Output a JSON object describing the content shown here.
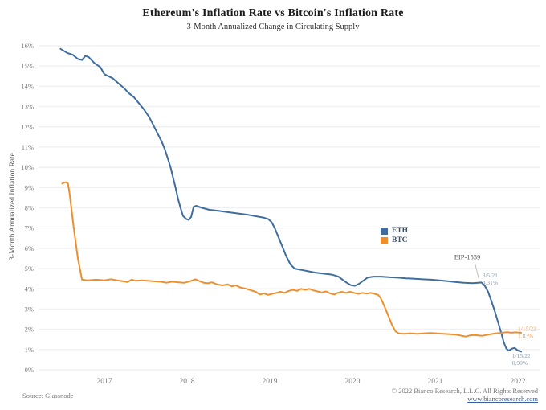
{
  "header": {
    "title": "Ethereum's Inflation Rate vs Bitcoin's Inflation Rate",
    "subtitle": "3-Month Annualized Change in Circulating Supply"
  },
  "footer": {
    "source": "Source: Glassnode",
    "copyright": "© 2022 Bianco Research, L.L.C. All Rights Reserved",
    "url": "www.biancoresearch.com"
  },
  "chart_data": {
    "type": "line",
    "title": "Ethereum's Inflation Rate vs Bitcoin's Inflation Rate",
    "subtitle": "3-Month Annualized Change in Circulating Supply",
    "ylabel": "3-Month Annualized Inflation Rate",
    "xlabel": "",
    "ylim": [
      0,
      16
    ],
    "xlim": [
      2016.42,
      2022.12
    ],
    "grid": "horizontal",
    "legend_position": "center-right",
    "colors": {
      "grid": "#f0f0f0",
      "tick_label": "#7b7b7b",
      "annotation_gray": "#555555",
      "annotation_blue": "#8aa0b6",
      "annotation_orange": "#f0a055",
      "leader_line": "#c0c0c0"
    },
    "y_ticks": [
      {
        "v": 0,
        "label": "0%"
      },
      {
        "v": 1,
        "label": "1%"
      },
      {
        "v": 2,
        "label": "2%"
      },
      {
        "v": 3,
        "label": "3%"
      },
      {
        "v": 4,
        "label": "4%"
      },
      {
        "v": 5,
        "label": "5%"
      },
      {
        "v": 6,
        "label": "6%"
      },
      {
        "v": 7,
        "label": "7%"
      },
      {
        "v": 8,
        "label": "8%"
      },
      {
        "v": 9,
        "label": "9%"
      },
      {
        "v": 10,
        "label": "10%"
      },
      {
        "v": 11,
        "label": "11%"
      },
      {
        "v": 12,
        "label": "12%"
      },
      {
        "v": 13,
        "label": "13%"
      },
      {
        "v": 14,
        "label": "14%"
      },
      {
        "v": 15,
        "label": "15%"
      },
      {
        "v": 16,
        "label": "16%"
      }
    ],
    "x_ticks": [
      {
        "v": 2017,
        "label": "2017"
      },
      {
        "v": 2018,
        "label": "2018"
      },
      {
        "v": 2019,
        "label": "2019"
      },
      {
        "v": 2020,
        "label": "2020"
      },
      {
        "v": 2021,
        "label": "2021"
      },
      {
        "v": 2022,
        "label": "2022"
      }
    ],
    "series": [
      {
        "name": "ETH",
        "color": "#3e6d9e",
        "points": [
          [
            2016.47,
            15.85
          ],
          [
            2016.55,
            15.65
          ],
          [
            2016.62,
            15.55
          ],
          [
            2016.68,
            15.35
          ],
          [
            2016.73,
            15.3
          ],
          [
            2016.77,
            15.5
          ],
          [
            2016.81,
            15.45
          ],
          [
            2016.88,
            15.15
          ],
          [
            2016.95,
            14.95
          ],
          [
            2017.0,
            14.6
          ],
          [
            2017.05,
            14.5
          ],
          [
            2017.1,
            14.4
          ],
          [
            2017.17,
            14.15
          ],
          [
            2017.24,
            13.9
          ],
          [
            2017.3,
            13.65
          ],
          [
            2017.36,
            13.45
          ],
          [
            2017.42,
            13.15
          ],
          [
            2017.48,
            12.85
          ],
          [
            2017.54,
            12.5
          ],
          [
            2017.59,
            12.1
          ],
          [
            2017.64,
            11.7
          ],
          [
            2017.69,
            11.3
          ],
          [
            2017.73,
            10.9
          ],
          [
            2017.77,
            10.4
          ],
          [
            2017.8,
            10.0
          ],
          [
            2017.83,
            9.5
          ],
          [
            2017.86,
            9.0
          ],
          [
            2017.89,
            8.45
          ],
          [
            2017.92,
            8.0
          ],
          [
            2017.95,
            7.6
          ],
          [
            2017.99,
            7.45
          ],
          [
            2018.02,
            7.4
          ],
          [
            2018.05,
            7.55
          ],
          [
            2018.08,
            8.05
          ],
          [
            2018.11,
            8.1
          ],
          [
            2018.18,
            8.0
          ],
          [
            2018.27,
            7.9
          ],
          [
            2018.38,
            7.85
          ],
          [
            2018.5,
            7.78
          ],
          [
            2018.62,
            7.72
          ],
          [
            2018.74,
            7.65
          ],
          [
            2018.84,
            7.58
          ],
          [
            2018.92,
            7.52
          ],
          [
            2018.98,
            7.45
          ],
          [
            2019.02,
            7.3
          ],
          [
            2019.06,
            7.0
          ],
          [
            2019.1,
            6.6
          ],
          [
            2019.15,
            6.1
          ],
          [
            2019.2,
            5.6
          ],
          [
            2019.25,
            5.2
          ],
          [
            2019.3,
            5.0
          ],
          [
            2019.36,
            4.95
          ],
          [
            2019.45,
            4.88
          ],
          [
            2019.55,
            4.8
          ],
          [
            2019.65,
            4.75
          ],
          [
            2019.75,
            4.7
          ],
          [
            2019.83,
            4.6
          ],
          [
            2019.88,
            4.45
          ],
          [
            2019.93,
            4.3
          ],
          [
            2019.98,
            4.18
          ],
          [
            2020.03,
            4.15
          ],
          [
            2020.08,
            4.25
          ],
          [
            2020.13,
            4.4
          ],
          [
            2020.18,
            4.55
          ],
          [
            2020.25,
            4.6
          ],
          [
            2020.35,
            4.6
          ],
          [
            2020.45,
            4.57
          ],
          [
            2020.55,
            4.55
          ],
          [
            2020.65,
            4.52
          ],
          [
            2020.75,
            4.5
          ],
          [
            2020.85,
            4.47
          ],
          [
            2020.95,
            4.45
          ],
          [
            2021.05,
            4.42
          ],
          [
            2021.15,
            4.38
          ],
          [
            2021.25,
            4.33
          ],
          [
            2021.35,
            4.3
          ],
          [
            2021.45,
            4.28
          ],
          [
            2021.52,
            4.3
          ],
          [
            2021.56,
            4.31
          ],
          [
            2021.6,
            4.15
          ],
          [
            2021.64,
            3.85
          ],
          [
            2021.68,
            3.4
          ],
          [
            2021.72,
            2.9
          ],
          [
            2021.76,
            2.35
          ],
          [
            2021.8,
            1.8
          ],
          [
            2021.83,
            1.35
          ],
          [
            2021.86,
            1.05
          ],
          [
            2021.89,
            0.95
          ],
          [
            2021.93,
            1.05
          ],
          [
            2021.96,
            1.08
          ],
          [
            2021.99,
            0.98
          ],
          [
            2022.02,
            0.92
          ],
          [
            2022.04,
            0.9
          ]
        ]
      },
      {
        "name": "BTC",
        "color": "#ee8f2d",
        "points": [
          [
            2016.49,
            9.2
          ],
          [
            2016.53,
            9.27
          ],
          [
            2016.56,
            9.2
          ],
          [
            2016.58,
            8.7
          ],
          [
            2016.63,
            7.0
          ],
          [
            2016.68,
            5.5
          ],
          [
            2016.73,
            4.45
          ],
          [
            2016.8,
            4.42
          ],
          [
            2016.9,
            4.45
          ],
          [
            2017.0,
            4.42
          ],
          [
            2017.08,
            4.47
          ],
          [
            2017.15,
            4.42
          ],
          [
            2017.22,
            4.38
          ],
          [
            2017.28,
            4.33
          ],
          [
            2017.33,
            4.45
          ],
          [
            2017.38,
            4.4
          ],
          [
            2017.45,
            4.42
          ],
          [
            2017.52,
            4.4
          ],
          [
            2017.6,
            4.37
          ],
          [
            2017.68,
            4.35
          ],
          [
            2017.75,
            4.3
          ],
          [
            2017.82,
            4.35
          ],
          [
            2017.9,
            4.32
          ],
          [
            2017.97,
            4.3
          ],
          [
            2018.04,
            4.38
          ],
          [
            2018.1,
            4.47
          ],
          [
            2018.15,
            4.38
          ],
          [
            2018.2,
            4.3
          ],
          [
            2018.25,
            4.27
          ],
          [
            2018.3,
            4.32
          ],
          [
            2018.36,
            4.22
          ],
          [
            2018.43,
            4.17
          ],
          [
            2018.49,
            4.22
          ],
          [
            2018.54,
            4.12
          ],
          [
            2018.59,
            4.17
          ],
          [
            2018.64,
            4.07
          ],
          [
            2018.72,
            4.0
          ],
          [
            2018.78,
            3.92
          ],
          [
            2018.83,
            3.85
          ],
          [
            2018.88,
            3.72
          ],
          [
            2018.93,
            3.77
          ],
          [
            2018.98,
            3.7
          ],
          [
            2019.03,
            3.75
          ],
          [
            2019.08,
            3.8
          ],
          [
            2019.13,
            3.85
          ],
          [
            2019.18,
            3.8
          ],
          [
            2019.23,
            3.9
          ],
          [
            2019.28,
            3.95
          ],
          [
            2019.33,
            3.9
          ],
          [
            2019.38,
            4.0
          ],
          [
            2019.43,
            3.95
          ],
          [
            2019.48,
            4.0
          ],
          [
            2019.53,
            3.92
          ],
          [
            2019.58,
            3.87
          ],
          [
            2019.63,
            3.82
          ],
          [
            2019.68,
            3.87
          ],
          [
            2019.73,
            3.77
          ],
          [
            2019.78,
            3.72
          ],
          [
            2019.82,
            3.8
          ],
          [
            2019.87,
            3.85
          ],
          [
            2019.92,
            3.8
          ],
          [
            2019.97,
            3.85
          ],
          [
            2020.02,
            3.8
          ],
          [
            2020.07,
            3.75
          ],
          [
            2020.12,
            3.8
          ],
          [
            2020.17,
            3.76
          ],
          [
            2020.22,
            3.8
          ],
          [
            2020.27,
            3.75
          ],
          [
            2020.31,
            3.7
          ],
          [
            2020.34,
            3.55
          ],
          [
            2020.38,
            3.2
          ],
          [
            2020.43,
            2.7
          ],
          [
            2020.48,
            2.2
          ],
          [
            2020.52,
            1.9
          ],
          [
            2020.56,
            1.8
          ],
          [
            2020.62,
            1.78
          ],
          [
            2020.7,
            1.8
          ],
          [
            2020.78,
            1.78
          ],
          [
            2020.86,
            1.8
          ],
          [
            2020.94,
            1.82
          ],
          [
            2021.02,
            1.8
          ],
          [
            2021.1,
            1.78
          ],
          [
            2021.18,
            1.76
          ],
          [
            2021.26,
            1.73
          ],
          [
            2021.32,
            1.68
          ],
          [
            2021.37,
            1.64
          ],
          [
            2021.42,
            1.7
          ],
          [
            2021.47,
            1.72
          ],
          [
            2021.52,
            1.7
          ],
          [
            2021.57,
            1.68
          ],
          [
            2021.62,
            1.72
          ],
          [
            2021.67,
            1.76
          ],
          [
            2021.72,
            1.79
          ],
          [
            2021.77,
            1.81
          ],
          [
            2021.82,
            1.84
          ],
          [
            2021.87,
            1.86
          ],
          [
            2021.92,
            1.83
          ],
          [
            2021.97,
            1.85
          ],
          [
            2022.01,
            1.84
          ],
          [
            2022.04,
            1.83
          ]
        ]
      }
    ],
    "annotations": [
      {
        "name": "eip-1559-label",
        "lines": [
          "EIP-1559"
        ],
        "x": 2021.23,
        "y": 5.45,
        "color": "#555555",
        "size": 8.5,
        "leader": {
          "x1": 2021.485,
          "y1": 5.2,
          "x2": 2021.53,
          "y2": 4.45
        }
      },
      {
        "name": "eth-peak-label",
        "lines": [
          "8/5/21",
          "4.31%"
        ],
        "x": 2021.57,
        "y": 4.57,
        "color": "#8aa0b6",
        "size": 7.5
      },
      {
        "name": "btc-end-label",
        "lines": [
          "1/15/22",
          "1.83%"
        ],
        "x": 2022.0,
        "y": 1.93,
        "color": "#f0a055",
        "size": 7.5
      },
      {
        "name": "eth-end-label",
        "lines": [
          "1/15/22",
          "0.90%"
        ],
        "x": 2021.93,
        "y": 0.6,
        "color": "#8aa0b6",
        "size": 7.5
      }
    ]
  }
}
